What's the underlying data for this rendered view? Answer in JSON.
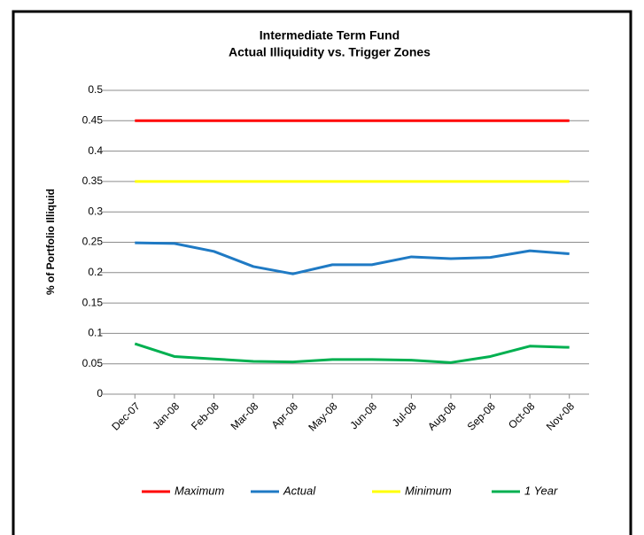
{
  "chart_data": {
    "type": "line",
    "title": "Intermediate Term Fund",
    "subtitle": "Actual Illiquidity vs. Trigger Zones",
    "y_label": "% of Portfolio Illiquid",
    "categories": [
      "Dec-07",
      "Jan-08",
      "Feb-08",
      "Mar-08",
      "Apr-08",
      "May-08",
      "Jun-08",
      "Jul-08",
      "Aug-08",
      "Sep-08",
      "Oct-08",
      "Nov-08"
    ],
    "series": [
      {
        "name": "Maximum",
        "color": "#ff0000",
        "values": [
          0.45,
          0.45,
          0.45,
          0.45,
          0.45,
          0.45,
          0.45,
          0.45,
          0.45,
          0.45,
          0.45,
          0.45
        ]
      },
      {
        "name": "Actual",
        "color": "#1f7ac4",
        "values": [
          0.249,
          0.248,
          0.235,
          0.21,
          0.198,
          0.213,
          0.213,
          0.226,
          0.223,
          0.225,
          0.236,
          0.231
        ]
      },
      {
        "name": "Minimum",
        "color": "#ffff00",
        "values": [
          0.35,
          0.35,
          0.35,
          0.35,
          0.35,
          0.35,
          0.35,
          0.35,
          0.35,
          0.35,
          0.35,
          0.35
        ]
      },
      {
        "name": "1 Year",
        "color": "#00b050",
        "values": [
          0.083,
          0.062,
          0.058,
          0.054,
          0.053,
          0.057,
          0.057,
          0.056,
          0.052,
          0.062,
          0.079,
          0.077
        ]
      }
    ],
    "ylim": [
      0,
      0.5
    ],
    "yticks": [
      0,
      0.05,
      0.1,
      0.15,
      0.2,
      0.25,
      0.3,
      0.35,
      0.4,
      0.45,
      0.5
    ],
    "grid": true,
    "legend": "bottom"
  }
}
